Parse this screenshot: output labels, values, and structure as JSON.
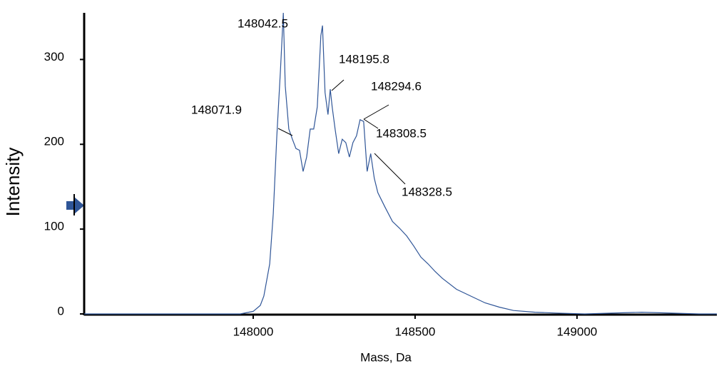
{
  "chart_data": {
    "type": "line",
    "xlabel": "Mass, Da",
    "ylabel": "Intensity",
    "xlim": [
      147478,
      149432
    ],
    "xticks": [
      148000,
      148500,
      149000
    ],
    "ylim": [
      0,
      355
    ],
    "yticks": [
      0,
      100,
      200,
      300
    ],
    "series": [
      {
        "color": "#2f5597",
        "x": [
          147478,
          147700,
          147960,
          148000,
          148022,
          148033,
          148051,
          148062,
          148073,
          148084,
          148093,
          148099,
          148110,
          148121,
          148132,
          148143,
          148154,
          148165,
          148176,
          148187,
          148198,
          148209,
          148214,
          148222,
          148231,
          148238,
          148244,
          148253,
          148264,
          148275,
          148286,
          148297,
          148308,
          148319,
          148330,
          148341,
          148352,
          148363,
          148374,
          148385,
          148407,
          148430,
          148452,
          148474,
          148496,
          148518,
          148540,
          148562,
          148584,
          148628,
          148672,
          148716,
          148760,
          148804,
          148870,
          148936,
          149024,
          149200,
          149377,
          149432
        ],
        "values": [
          0,
          0,
          0,
          3,
          10,
          21,
          59,
          118,
          210,
          286,
          355,
          269,
          218,
          206,
          195,
          193,
          168,
          185,
          218,
          218,
          244,
          328,
          340,
          261,
          235,
          265,
          244,
          218,
          189,
          206,
          202,
          185,
          202,
          210,
          229,
          227,
          168,
          189,
          160,
          143,
          126,
          109,
          101,
          92,
          80,
          67,
          59,
          50,
          42,
          29,
          21,
          13,
          8,
          4,
          2,
          1,
          0,
          2,
          0,
          0
        ]
      }
    ],
    "annotations": [
      "148042.5",
      "148195.8",
      "148071.9",
      "148294.6",
      "148308.5",
      "148328.5"
    ]
  }
}
